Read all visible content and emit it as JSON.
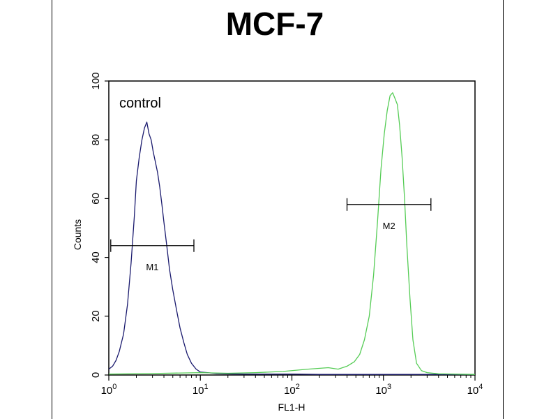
{
  "chart_data": {
    "type": "line",
    "title": "MCF-7",
    "xlabel": "FL1-H",
    "ylabel": "Counts",
    "x_scale": "log",
    "xlim": [
      1,
      10000
    ],
    "ylim": [
      0,
      100
    ],
    "x_ticks": [
      {
        "value": 1,
        "base": "10",
        "exp": "0"
      },
      {
        "value": 10,
        "base": "10",
        "exp": "1"
      },
      {
        "value": 100,
        "base": "10",
        "exp": "2"
      },
      {
        "value": 1000,
        "base": "10",
        "exp": "3"
      },
      {
        "value": 10000,
        "base": "10",
        "exp": "4"
      }
    ],
    "y_ticks": [
      0,
      20,
      40,
      60,
      80,
      100
    ],
    "annotations": [
      {
        "text": "control",
        "x": 1.3,
        "y": 91
      }
    ],
    "series": [
      {
        "color": "#1a1a6e",
        "x": [
          1.0,
          1.1,
          1.2,
          1.3,
          1.45,
          1.6,
          1.75,
          1.9,
          2.0,
          2.15,
          2.3,
          2.45,
          2.6,
          2.75,
          2.9,
          3.05,
          3.2,
          3.4,
          3.6,
          3.8,
          4.0,
          4.3,
          4.6,
          5.0,
          5.5,
          6.0,
          6.6,
          7.2,
          8.0,
          9.0,
          10.0,
          12,
          15,
          20,
          30,
          50,
          100,
          200,
          500,
          1000,
          3000,
          10000
        ],
        "y": [
          2,
          3,
          5,
          8,
          14,
          24,
          38,
          54,
          66,
          74,
          80,
          84,
          86,
          82,
          80,
          76,
          73,
          69,
          64,
          58,
          52,
          44,
          36,
          29,
          22,
          16,
          11,
          7,
          4,
          2,
          1,
          0.8,
          0.5,
          0.4,
          0.3,
          0.3,
          0.3,
          0.2,
          0.2,
          0.2,
          0.2,
          0.2
        ]
      },
      {
        "color": "#55cc55",
        "x": [
          1,
          3,
          10,
          20,
          40,
          80,
          150,
          250,
          320,
          400,
          480,
          550,
          620,
          700,
          780,
          860,
          940,
          1020,
          1100,
          1180,
          1260,
          1340,
          1420,
          1500,
          1600,
          1700,
          1800,
          1950,
          2100,
          2300,
          2600,
          3000,
          4000,
          6000,
          10000
        ],
        "y": [
          0.3,
          0.5,
          0.8,
          0.6,
          0.8,
          1.2,
          2.0,
          2.5,
          2.0,
          3.0,
          4.5,
          7.0,
          12,
          20,
          34,
          52,
          70,
          82,
          90,
          95,
          96,
          94,
          92,
          85,
          74,
          60,
          44,
          26,
          12,
          4,
          1.5,
          0.8,
          0.4,
          0.3,
          0.2
        ]
      }
    ],
    "markers": [
      {
        "label": "M1",
        "x_start": 1.05,
        "x_end": 8.5,
        "y": 44
      },
      {
        "label": "M2",
        "x_start": 400,
        "x_end": 3300,
        "y": 58
      }
    ]
  }
}
